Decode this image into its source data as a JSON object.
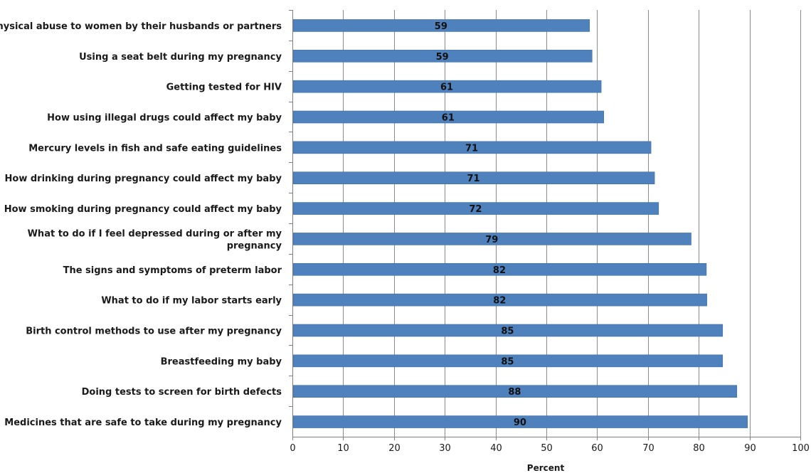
{
  "chart_data": {
    "type": "bar",
    "orientation": "horizontal",
    "title": "",
    "xlabel": "Percent",
    "ylabel": "",
    "xlim": [
      0,
      100
    ],
    "x_ticks": [
      0,
      10,
      20,
      30,
      40,
      50,
      60,
      70,
      80,
      90,
      100
    ],
    "grid": true,
    "legend": "none",
    "bar_color": "#4f81bd",
    "categories": [
      "Physical abuse to women by their husbands or partners",
      "Using a seat belt during my pregnancy",
      "Getting tested for HIV",
      "How using illegal drugs could affect my baby",
      "Mercury levels in fish  and safe eating guidelines",
      "How drinking during pregnancy could affect my baby",
      "How smoking during pregnancy could affect my baby",
      "What to do if I feel depressed during or after my pregnancy",
      "The signs and symptoms of preterm labor",
      "What to do if my labor starts early",
      "Birth control methods to use after my pregnancy",
      "Breastfeeding my baby",
      "Doing tests to screen for birth defects",
      "Medicines that are safe to take during my pregnancy"
    ],
    "category_lines": [
      [
        "Physical abuse to women by their husbands or partners"
      ],
      [
        "Using a seat belt during my pregnancy"
      ],
      [
        "Getting tested for HIV"
      ],
      [
        "How using illegal drugs could affect my baby"
      ],
      [
        "Mercury levels in fish  and safe eating guidelines"
      ],
      [
        "How drinking during pregnancy could affect my baby"
      ],
      [
        "How smoking during pregnancy could affect my baby"
      ],
      [
        "What to do if I feel depressed during or after my",
        "pregnancy"
      ],
      [
        "The signs and symptoms of preterm labor"
      ],
      [
        "What to do if my labor starts early"
      ],
      [
        "Birth control methods to use after my pregnancy"
      ],
      [
        "Breastfeeding my baby"
      ],
      [
        "Doing tests to screen for birth defects"
      ],
      [
        "Medicines that are safe to take during my pregnancy"
      ]
    ],
    "values": [
      58.5,
      59,
      60.8,
      61.3,
      70.6,
      71.3,
      72.1,
      78.5,
      81.5,
      81.6,
      84.7,
      84.7,
      87.5,
      89.6
    ],
    "data_labels": [
      "59",
      "59",
      "61",
      "61",
      "71",
      "71",
      "72",
      "79",
      "82",
      "82",
      "85",
      "85",
      "88",
      "90"
    ]
  }
}
